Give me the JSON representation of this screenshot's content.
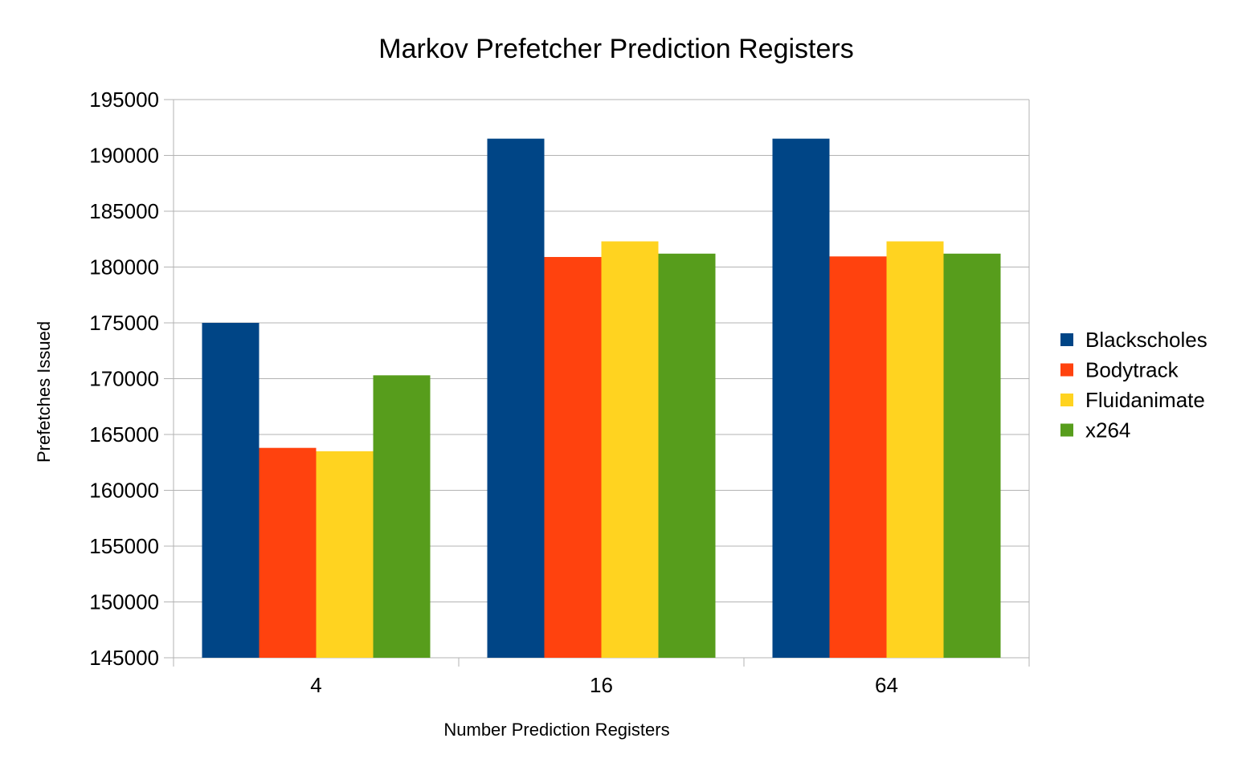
{
  "chart_data": {
    "type": "bar",
    "title": "Markov Prefetcher Prediction Registers",
    "xlabel": "Number Prediction Registers",
    "ylabel": "Prefetches Issued",
    "categories": [
      "4",
      "16",
      "64"
    ],
    "ylim": [
      145000,
      195000
    ],
    "yticks": [
      "145000",
      "150000",
      "155000",
      "160000",
      "165000",
      "170000",
      "175000",
      "180000",
      "185000",
      "190000",
      "195000"
    ],
    "grid": true,
    "legend_position": "right",
    "series": [
      {
        "name": "Blackscholes",
        "color": "#004586",
        "values": [
          175000,
          191500,
          191500
        ]
      },
      {
        "name": "Bodytrack",
        "color": "#ff420e",
        "values": [
          163800,
          180900,
          180950
        ]
      },
      {
        "name": "Fluidanimate",
        "color": "#ffd320",
        "values": [
          163500,
          182300,
          182300
        ]
      },
      {
        "name": "x264",
        "color": "#579d1c",
        "values": [
          170300,
          181200,
          181200
        ]
      }
    ]
  }
}
